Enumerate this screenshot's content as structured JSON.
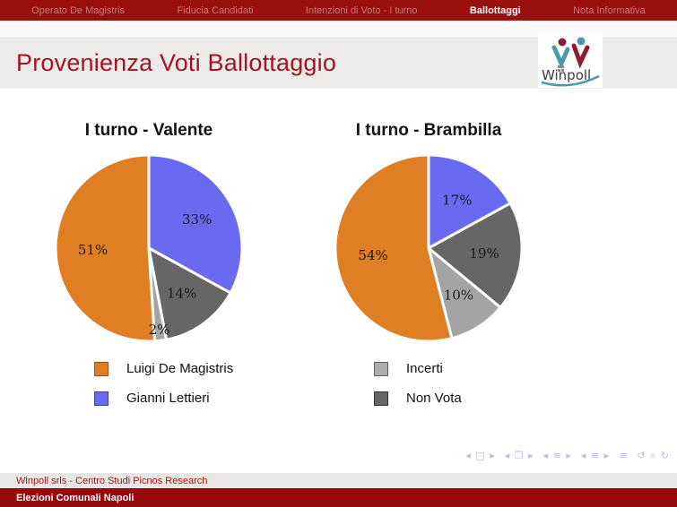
{
  "topbar": {
    "items": [
      {
        "label": "Operato De Magistris",
        "active": false
      },
      {
        "label": "Fiducia Candidati",
        "active": false
      },
      {
        "label": "Intenzioni di Voto - I turno",
        "active": false
      },
      {
        "label": "Ballottaggi",
        "active": true
      },
      {
        "label": "Nota Informativa",
        "active": false
      }
    ]
  },
  "header": {
    "title": "Provenienza Voti Ballottaggio",
    "logo_text": "Winpoll"
  },
  "chart_data": [
    {
      "type": "pie",
      "title": "I turno - Valente",
      "start_angle": "top",
      "direction": "clockwise",
      "slices": [
        {
          "label": "Gianni Lettieri",
          "value": 33,
          "color": "#6a6af0"
        },
        {
          "label": "Non Vota",
          "value": 14,
          "color": "#666666"
        },
        {
          "label": "Incerti",
          "value": 2,
          "color": "#a4a4a4"
        },
        {
          "label": "Luigi De Magistris",
          "value": 51,
          "color": "#e07e23"
        }
      ]
    },
    {
      "type": "pie",
      "title": "I turno - Brambilla",
      "start_angle": "top",
      "direction": "clockwise",
      "slices": [
        {
          "label": "Gianni Lettieri",
          "value": 17,
          "color": "#6a6af0"
        },
        {
          "label": "Non Vota",
          "value": 19,
          "color": "#666666"
        },
        {
          "label": "Incerti",
          "value": 10,
          "color": "#a4a4a4"
        },
        {
          "label": "Luigi De Magistris",
          "value": 54,
          "color": "#e07e23"
        }
      ]
    }
  ],
  "legends": [
    [
      {
        "label": "Luigi De Magistris",
        "color": "#e07e23",
        "border": "#9c5410"
      },
      {
        "label": "Gianni Lettieri",
        "color": "#6a6af0",
        "border": "#3a3ab0"
      }
    ],
    [
      {
        "label": "Incerti",
        "color": "#acacac",
        "border": "#5f5f5f"
      },
      {
        "label": "Non Vota",
        "color": "#666666",
        "border": "#303030"
      }
    ]
  ],
  "nav_symbols": [
    "◂ □ ▸",
    "◂ ❐ ▸",
    "◂ ≡ ▸",
    "◂ ≡ ▸",
    "≡",
    "↺ ⌕ ↻"
  ],
  "footer": {
    "line1": "Winpoll srls - Centro Studi Picnos Research",
    "line2": "Elezioni Comunali Napoli"
  },
  "colors": {
    "bar_red": "#99100f",
    "title_red": "#a31320",
    "footer_red": "#950b0b",
    "pie_orange": "#e07e23",
    "pie_blue": "#6a6af0",
    "pie_darkgray": "#666666",
    "pie_lightgray": "#a4a4a4",
    "nav_symbols": "#b9b9e4",
    "logo_red": "#8e1d33",
    "logo_teal": "#4a9aad"
  }
}
